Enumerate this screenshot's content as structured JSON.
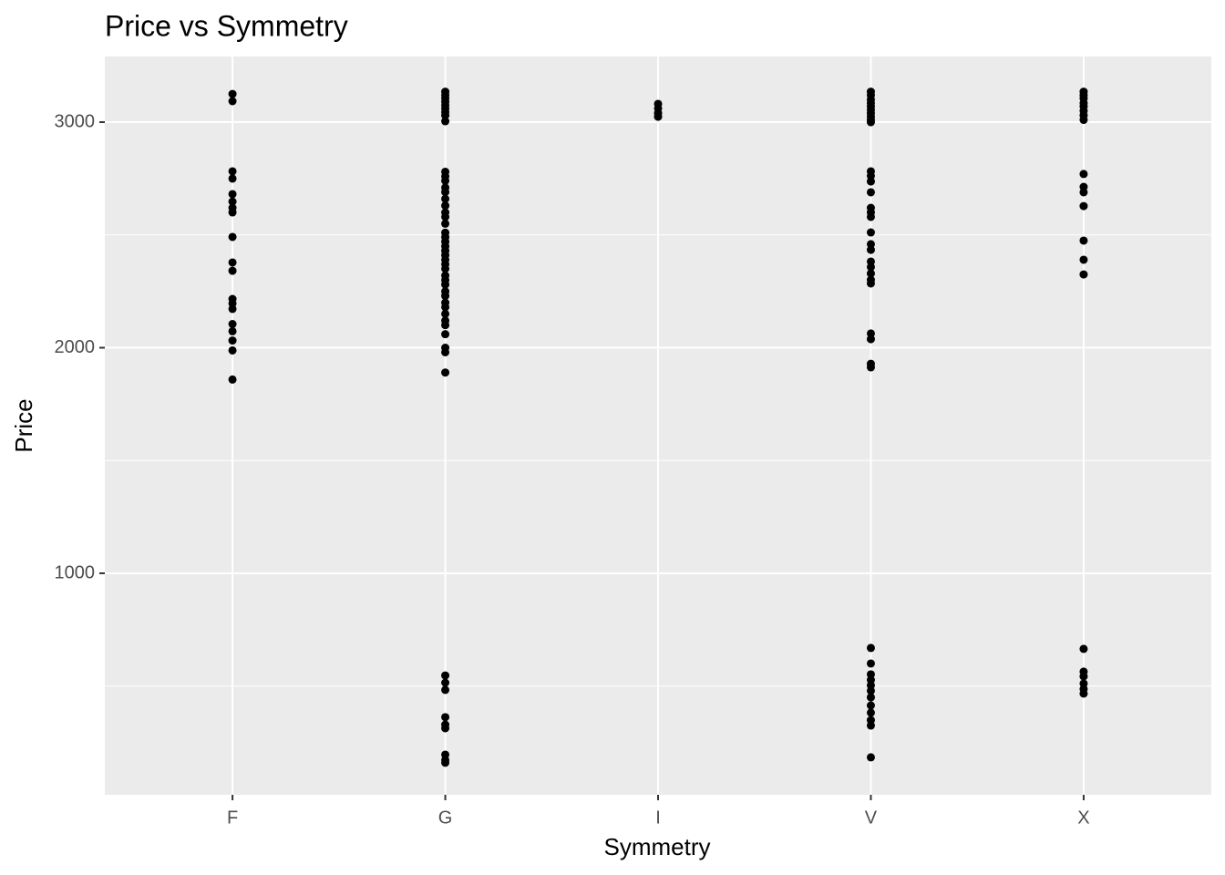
{
  "chart_data": {
    "type": "strip",
    "title": "Price vs Symmetry",
    "x_label": "Symmetry",
    "y_label": "Price",
    "categories": [
      "F",
      "G",
      "I",
      "V",
      "X"
    ],
    "values": [
      [
        3125,
        3093,
        2782,
        2750,
        2681,
        2648,
        2620,
        2600,
        2491,
        2378,
        2341,
        2216,
        2196,
        2172,
        2105,
        2073,
        2032,
        1988,
        1859
      ],
      [
        3135,
        3120,
        3105,
        3090,
        3075,
        3060,
        3045,
        3030,
        3004,
        2780,
        2760,
        2740,
        2710,
        2690,
        2660,
        2630,
        2600,
        2580,
        2550,
        2510,
        2490,
        2470,
        2450,
        2430,
        2410,
        2390,
        2370,
        2350,
        2320,
        2300,
        2280,
        2250,
        2230,
        2200,
        2180,
        2150,
        2120,
        2100,
        2060,
        2000,
        1980,
        1890,
        547,
        515,
        483,
        362,
        329,
        313,
        196,
        172,
        160
      ],
      [
        3081,
        3061,
        3040,
        3024
      ],
      [
        3135,
        3120,
        3100,
        3085,
        3070,
        3055,
        3040,
        3025,
        3010,
        3000,
        2782,
        2762,
        2737,
        2689,
        2620,
        2600,
        2580,
        2511,
        2459,
        2434,
        2382,
        2358,
        2329,
        2301,
        2285,
        2063,
        2038,
        1929,
        1913,
        669,
        600,
        552,
        527,
        503,
        479,
        450,
        414,
        382,
        349,
        325,
        184
      ],
      [
        3135,
        3120,
        3105,
        3085,
        3070,
        3050,
        3030,
        3010,
        2770,
        2713,
        2689,
        2628,
        2475,
        2390,
        2325,
        665,
        564,
        543,
        511,
        487,
        467
      ]
    ],
    "color": "#000000",
    "ylim": [
      18,
      3291
    ],
    "yticks": [
      1000,
      2000,
      3000
    ],
    "minor_yticks": [
      500,
      1500,
      2500
    ],
    "grid": true
  }
}
